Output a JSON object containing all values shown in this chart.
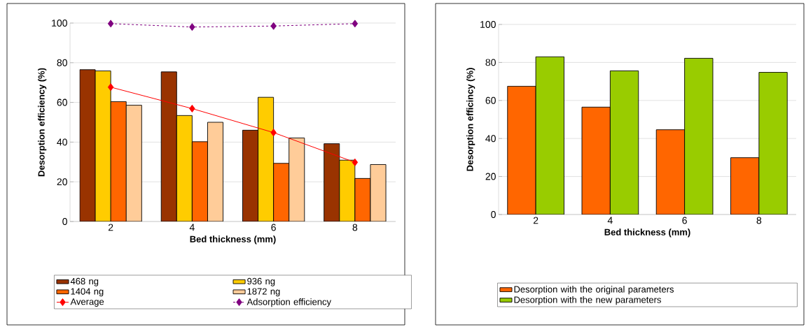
{
  "chart_data": [
    {
      "type": "bar",
      "xlabel": "Bed thickness (mm)",
      "ylabel": "Desorption efficiency (%)",
      "categories": [
        "2",
        "4",
        "6",
        "8"
      ],
      "ylim": [
        0,
        100
      ],
      "yticks": [
        0,
        20,
        40,
        60,
        80,
        100
      ],
      "grid": "y",
      "legend": "bottom",
      "series": [
        {
          "name": "468 ng",
          "color": "#993300",
          "values": [
            76.5,
            75.4,
            46.0,
            39.2
          ]
        },
        {
          "name": "936 ng",
          "color": "#ffcc00",
          "values": [
            75.9,
            53.4,
            62.6,
            30.9
          ]
        },
        {
          "name": "1404 ng",
          "color": "#ff6600",
          "values": [
            60.4,
            40.2,
            29.3,
            21.7
          ]
        },
        {
          "name": "1872 ng",
          "color": "#ffcc99",
          "values": [
            58.6,
            50.0,
            42.1,
            28.7
          ]
        },
        {
          "name": "Average",
          "type": "line",
          "color": "#ff0000",
          "marker": "diamond",
          "line_style": "solid",
          "values": [
            67.7,
            56.9,
            44.8,
            29.8
          ]
        },
        {
          "name": "Adsorption efficiency",
          "type": "line",
          "color": "#800080",
          "marker": "diamond",
          "line_style": "dashed",
          "values": [
            99.7,
            98.0,
            98.5,
            99.7
          ]
        }
      ]
    },
    {
      "type": "bar",
      "xlabel": "Bed thickness (mm)",
      "ylabel": "Desorption efficincy (%)",
      "categories": [
        "2",
        "4",
        "6",
        "8"
      ],
      "ylim": [
        0,
        100
      ],
      "yticks": [
        0,
        20,
        40,
        60,
        80,
        100
      ],
      "grid": "y",
      "legend": "bottom",
      "series": [
        {
          "name": "Desorption with the original parameters",
          "color": "#ff6600",
          "values": [
            67.5,
            56.5,
            44.6,
            29.9
          ]
        },
        {
          "name": "Desorption with the new parameters",
          "color": "#99cc00",
          "values": [
            83.0,
            75.6,
            82.2,
            74.8
          ]
        }
      ]
    }
  ]
}
